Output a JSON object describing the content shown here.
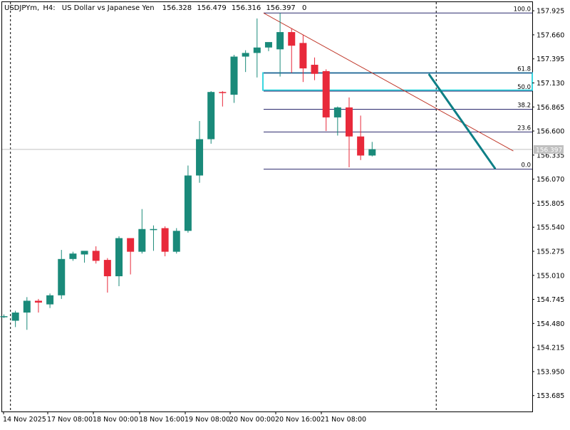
{
  "header": {
    "symbol": "USDJPYm,",
    "timeframe": "H4:",
    "description": "US Dollar vs Japanese Yen",
    "open": "156.328",
    "high": "156.479",
    "low": "156.316",
    "close": "156.397",
    "volume": "0"
  },
  "price_badge": "156.397",
  "colors": {
    "bull": "#1a8a7a",
    "bear": "#e8293a",
    "fib_lines": "#2b2a6e",
    "trendline_red": "#c0392b",
    "trendline_teal": "#0e7f86",
    "zone": "#39d6df",
    "grid": "#000000",
    "bid_line": "#c0c0c0"
  },
  "chart_data": {
    "type": "candlestick",
    "title": "USDJPYm, H4: US Dollar vs Japanese Yen",
    "y_ticks": [
      "157.925",
      "157.660",
      "157.395",
      "157.130",
      "156.865",
      "156.600",
      "156.335",
      "156.070",
      "155.805",
      "155.540",
      "155.275",
      "155.010",
      "154.745",
      "154.480",
      "154.215",
      "153.950",
      "153.685"
    ],
    "x_ticks": [
      "14 Nov 2025",
      "17 Nov 08:00",
      "18 Nov 00:00",
      "18 Nov 16:00",
      "19 Nov 08:00",
      "20 Nov 00:00",
      "20 Nov 16:00",
      "21 Nov 08:00"
    ],
    "ylim": [
      153.51,
      158.02
    ],
    "candles": [
      {
        "o": 154.55,
        "h": 154.58,
        "l": 154.54,
        "c": 154.56
      },
      {
        "o": 154.51,
        "h": 154.62,
        "l": 154.44,
        "c": 154.6
      },
      {
        "o": 154.6,
        "h": 154.77,
        "l": 154.41,
        "c": 154.73
      },
      {
        "o": 154.73,
        "h": 154.75,
        "l": 154.6,
        "c": 154.71
      },
      {
        "o": 154.69,
        "h": 154.81,
        "l": 154.65,
        "c": 154.79
      },
      {
        "o": 154.79,
        "h": 155.29,
        "l": 154.75,
        "c": 155.19
      },
      {
        "o": 155.19,
        "h": 155.27,
        "l": 155.17,
        "c": 155.25
      },
      {
        "o": 155.24,
        "h": 155.27,
        "l": 155.15,
        "c": 155.28
      },
      {
        "o": 155.28,
        "h": 155.33,
        "l": 155.14,
        "c": 155.17
      },
      {
        "o": 155.18,
        "h": 155.2,
        "l": 154.82,
        "c": 155.0
      },
      {
        "o": 155.0,
        "h": 155.44,
        "l": 154.89,
        "c": 155.42
      },
      {
        "o": 155.42,
        "h": 155.42,
        "l": 155.02,
        "c": 155.27
      },
      {
        "o": 155.27,
        "h": 155.74,
        "l": 155.25,
        "c": 155.52
      },
      {
        "o": 155.52,
        "h": 155.56,
        "l": 155.28,
        "c": 155.52
      },
      {
        "o": 155.53,
        "h": 155.55,
        "l": 155.22,
        "c": 155.27
      },
      {
        "o": 155.27,
        "h": 155.53,
        "l": 155.25,
        "c": 155.5
      },
      {
        "o": 155.5,
        "h": 156.22,
        "l": 155.48,
        "c": 156.11
      },
      {
        "o": 156.11,
        "h": 156.71,
        "l": 156.03,
        "c": 156.51
      },
      {
        "o": 156.51,
        "h": 157.04,
        "l": 156.46,
        "c": 157.03
      },
      {
        "o": 157.03,
        "h": 157.04,
        "l": 156.87,
        "c": 157.02
      },
      {
        "o": 157.0,
        "h": 157.44,
        "l": 156.91,
        "c": 157.42
      },
      {
        "o": 157.42,
        "h": 157.49,
        "l": 157.25,
        "c": 157.46
      },
      {
        "o": 157.46,
        "h": 157.84,
        "l": 157.19,
        "c": 157.52
      },
      {
        "o": 157.52,
        "h": 157.56,
        "l": 157.48,
        "c": 157.58
      },
      {
        "o": 157.5,
        "h": 157.9,
        "l": 157.2,
        "c": 157.69
      },
      {
        "o": 157.69,
        "h": 157.73,
        "l": 157.24,
        "c": 157.54
      },
      {
        "o": 157.57,
        "h": 157.66,
        "l": 157.14,
        "c": 157.29
      },
      {
        "o": 157.33,
        "h": 157.41,
        "l": 157.16,
        "c": 157.23
      },
      {
        "o": 157.26,
        "h": 157.28,
        "l": 156.6,
        "c": 156.75
      },
      {
        "o": 156.75,
        "h": 156.87,
        "l": 156.55,
        "c": 156.86
      },
      {
        "o": 156.86,
        "h": 156.97,
        "l": 156.2,
        "c": 156.54
      },
      {
        "o": 156.54,
        "h": 156.77,
        "l": 156.28,
        "c": 156.33
      },
      {
        "o": 156.33,
        "h": 156.48,
        "l": 156.32,
        "c": 156.4
      }
    ],
    "fibonacci": {
      "high": 157.9,
      "low": 156.18,
      "levels": [
        {
          "label": "100.0",
          "value": 157.9
        },
        {
          "label": "61.8",
          "value": 157.24
        },
        {
          "label": "50.0",
          "value": 157.04
        },
        {
          "label": "38.2",
          "value": 156.84
        },
        {
          "label": "23.6",
          "value": 156.59
        },
        {
          "label": "0.0",
          "value": 156.18
        }
      ]
    },
    "zone": {
      "top": 157.24,
      "bottom": 157.05
    },
    "red_trendline": {
      "from": {
        "bar": 22.6,
        "price": 157.9
      },
      "to": {
        "bar": 44.3,
        "price": 156.38
      }
    },
    "teal_trendline": {
      "from": {
        "bar": 37.0,
        "price": 157.22
      },
      "to": {
        "bar": 42.7,
        "price": 156.19
      }
    },
    "bid_price": 156.397,
    "period_separators": [
      {
        "bar": 0.6
      },
      {
        "bar": 37.6
      }
    ],
    "grid": false,
    "legend": "none"
  }
}
